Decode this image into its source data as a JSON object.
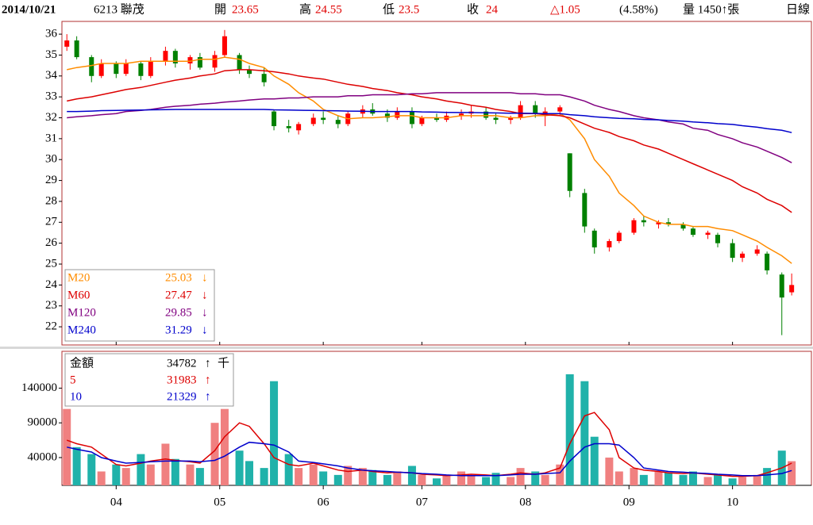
{
  "header": {
    "date": "2014/10/21",
    "stock": "6213 聯茂",
    "open_label": "開",
    "open": "23.65",
    "high_label": "高",
    "high": "24.55",
    "low_label": "低",
    "low": "23.5",
    "close_label": "收",
    "close": "24",
    "change": "△1.05",
    "change_pct": "(4.58%)",
    "volume": "量 1450↑張",
    "period": "日線"
  },
  "chart_data": [
    {
      "type": "candlestick",
      "xlim": [
        -1,
        151
      ],
      "ylim": [
        21.13,
        36.61
      ],
      "yticks": [
        22,
        23,
        24,
        25,
        26,
        27,
        28,
        29,
        30,
        31,
        32,
        33,
        34,
        35,
        36
      ],
      "up_color": "#ff0000",
      "down_color": "#008000",
      "x": [
        0,
        2,
        5,
        7,
        10,
        12,
        15,
        17,
        20,
        22,
        25,
        27,
        30,
        32,
        35,
        37,
        40,
        42,
        45,
        47,
        50,
        52,
        55,
        57,
        60,
        62,
        65,
        67,
        70,
        72,
        75,
        77,
        80,
        82,
        85,
        87,
        90,
        92,
        95,
        97,
        100,
        102,
        105,
        107,
        110,
        112,
        115,
        117,
        120,
        122,
        125,
        127,
        130,
        132,
        135,
        137,
        140,
        142,
        145,
        147
      ],
      "open": [
        35.4,
        35.7,
        34.9,
        34.0,
        34.6,
        34.1,
        34.6,
        34.0,
        34.7,
        35.2,
        34.6,
        34.9,
        34.4,
        35.0,
        35.0,
        34.3,
        34.1,
        32.3,
        31.6,
        31.4,
        31.7,
        32.0,
        31.9,
        31.7,
        32.2,
        32.4,
        32.2,
        32.0,
        32.3,
        31.7,
        32.0,
        31.9,
        32.1,
        32.2,
        32.3,
        32.0,
        31.9,
        32.0,
        32.6,
        32.2,
        32.3,
        30.3,
        28.4,
        26.6,
        25.8,
        26.1,
        26.5,
        27.1,
        26.9,
        27.0,
        26.9,
        26.7,
        26.4,
        26.4,
        26.0,
        25.3,
        25.5,
        25.5,
        24.5,
        23.65
      ],
      "high": [
        36.0,
        35.9,
        35.0,
        34.8,
        34.7,
        34.8,
        34.7,
        34.9,
        35.4,
        35.3,
        35.0,
        35.1,
        35.2,
        36.2,
        35.1,
        34.5,
        34.4,
        32.4,
        31.9,
        31.8,
        32.2,
        32.3,
        32.1,
        32.3,
        32.6,
        32.7,
        32.4,
        32.5,
        32.5,
        32.1,
        32.2,
        32.3,
        32.4,
        32.6,
        32.5,
        32.2,
        32.1,
        32.8,
        32.8,
        32.5,
        32.6,
        30.3,
        28.6,
        26.7,
        26.2,
        26.6,
        27.2,
        27.3,
        27.1,
        27.2,
        27.0,
        26.8,
        26.6,
        26.5,
        26.2,
        25.6,
        25.9,
        25.6,
        24.6,
        24.55
      ],
      "low": [
        35.2,
        34.8,
        33.7,
        33.9,
        33.9,
        34.0,
        33.8,
        33.9,
        34.5,
        34.4,
        34.3,
        34.3,
        34.2,
        34.9,
        34.1,
        33.9,
        33.5,
        31.4,
        31.3,
        31.2,
        31.6,
        31.7,
        31.5,
        31.6,
        32.0,
        32.1,
        31.8,
        31.9,
        31.5,
        31.6,
        31.8,
        31.8,
        31.9,
        32.0,
        31.9,
        31.7,
        31.7,
        31.9,
        32.0,
        31.6,
        32.1,
        28.2,
        26.5,
        25.5,
        25.6,
        26.0,
        26.4,
        26.8,
        26.7,
        26.8,
        26.6,
        26.3,
        26.2,
        25.8,
        25.1,
        25.1,
        25.4,
        24.5,
        21.6,
        23.5
      ],
      "close": [
        35.7,
        34.9,
        34.0,
        34.6,
        34.1,
        34.6,
        34.0,
        34.7,
        35.2,
        34.6,
        34.9,
        34.4,
        35.0,
        35.9,
        34.3,
        34.1,
        33.7,
        31.6,
        31.5,
        31.7,
        32.0,
        31.9,
        31.7,
        32.2,
        32.4,
        32.2,
        32.0,
        32.3,
        31.7,
        32.0,
        31.9,
        32.1,
        32.2,
        32.3,
        32.0,
        31.9,
        32.0,
        32.6,
        32.2,
        32.3,
        32.5,
        28.5,
        26.8,
        25.8,
        26.1,
        26.5,
        27.1,
        27.0,
        27.0,
        26.9,
        26.7,
        26.4,
        26.5,
        26.0,
        25.3,
        25.5,
        25.7,
        24.7,
        23.4,
        24.0
      ],
      "series": [
        {
          "name": "M20",
          "color": "#ff8c00",
          "trend": "↓",
          "values": [
            34.3,
            34.4,
            34.5,
            34.6,
            34.6,
            34.6,
            34.7,
            34.7,
            34.7,
            34.7,
            34.7,
            34.8,
            34.8,
            34.9,
            34.8,
            34.6,
            34.4,
            34.0,
            33.6,
            33.2,
            32.8,
            32.4,
            32.1,
            31.95,
            32.0,
            32.0,
            32.05,
            32.1,
            32.1,
            32.0,
            32.0,
            32.0,
            32.1,
            32.1,
            32.1,
            32.1,
            32.0,
            32.0,
            32.1,
            32.1,
            32.2,
            31.9,
            31.0,
            30.0,
            29.2,
            28.4,
            27.8,
            27.3,
            27.0,
            26.9,
            26.9,
            26.8,
            26.8,
            26.7,
            26.6,
            26.4,
            26.1,
            25.8,
            25.4,
            25.03
          ]
        },
        {
          "name": "M60",
          "color": "#dd0000",
          "trend": "↓",
          "values": [
            32.8,
            32.9,
            33.0,
            33.1,
            33.25,
            33.35,
            33.45,
            33.55,
            33.7,
            33.8,
            33.9,
            34.0,
            34.1,
            34.25,
            34.3,
            34.3,
            34.25,
            34.2,
            34.1,
            34.0,
            33.9,
            33.85,
            33.7,
            33.6,
            33.5,
            33.4,
            33.3,
            33.2,
            33.1,
            33.0,
            32.9,
            32.8,
            32.7,
            32.6,
            32.5,
            32.4,
            32.3,
            32.2,
            32.2,
            32.15,
            32.1,
            32.0,
            31.7,
            31.5,
            31.3,
            31.1,
            30.9,
            30.7,
            30.5,
            30.3,
            30.0,
            29.8,
            29.5,
            29.3,
            29.0,
            28.7,
            28.4,
            28.1,
            27.8,
            27.47
          ]
        },
        {
          "name": "M120",
          "color": "#800080",
          "trend": "↓",
          "values": [
            32.0,
            32.05,
            32.1,
            32.15,
            32.2,
            32.3,
            32.35,
            32.4,
            32.5,
            32.55,
            32.6,
            32.65,
            32.7,
            32.75,
            32.8,
            32.85,
            32.9,
            32.9,
            32.95,
            32.95,
            33.0,
            33.0,
            33.0,
            33.05,
            33.05,
            33.1,
            33.1,
            33.1,
            33.15,
            33.15,
            33.2,
            33.2,
            33.2,
            33.2,
            33.2,
            33.2,
            33.2,
            33.15,
            33.15,
            33.1,
            33.1,
            33.0,
            32.8,
            32.6,
            32.4,
            32.3,
            32.1,
            32.0,
            31.9,
            31.8,
            31.7,
            31.5,
            31.4,
            31.2,
            31.0,
            30.8,
            30.6,
            30.4,
            30.1,
            29.85
          ]
        },
        {
          "name": "M240",
          "color": "#0000cc",
          "trend": "↓",
          "values": [
            32.3,
            32.3,
            32.32,
            32.34,
            32.35,
            32.36,
            32.37,
            32.38,
            32.39,
            32.4,
            32.4,
            32.4,
            32.4,
            32.4,
            32.4,
            32.4,
            32.4,
            32.38,
            32.37,
            32.36,
            32.35,
            32.34,
            32.33,
            32.32,
            32.31,
            32.3,
            32.3,
            32.3,
            32.3,
            32.28,
            32.27,
            32.26,
            32.25,
            32.25,
            32.24,
            32.23,
            32.22,
            32.22,
            32.21,
            32.2,
            32.2,
            32.15,
            32.1,
            32.05,
            32.0,
            31.97,
            31.95,
            31.92,
            31.9,
            31.87,
            31.84,
            31.8,
            31.76,
            31.72,
            31.68,
            31.62,
            31.55,
            31.48,
            31.4,
            31.29
          ]
        }
      ]
    },
    {
      "type": "bar",
      "xlim": [
        -1,
        151
      ],
      "ylim": [
        0,
        193000
      ],
      "yticks": [
        40000,
        90000,
        140000
      ],
      "xticks": [
        {
          "value": 10,
          "label": "04"
        },
        {
          "value": 31,
          "label": "05"
        },
        {
          "value": 52,
          "label": "06"
        },
        {
          "value": 72,
          "label": "07"
        },
        {
          "value": 93,
          "label": "08"
        },
        {
          "value": 114,
          "label": "09"
        },
        {
          "value": 135,
          "label": "10"
        }
      ],
      "legend_label": "金額",
      "trend": "↑",
      "unit": "千",
      "up_color": "#f08080",
      "down_color": "#20b2aa",
      "values": [
        110000,
        55000,
        45000,
        20000,
        30000,
        25000,
        45000,
        30000,
        60000,
        38000,
        30000,
        25000,
        90000,
        110000,
        50000,
        35000,
        25000,
        150000,
        45000,
        25000,
        30000,
        20000,
        15000,
        28000,
        25000,
        22000,
        15000,
        20000,
        28000,
        15000,
        10000,
        15000,
        20000,
        15000,
        12000,
        18000,
        12000,
        25000,
        20000,
        15000,
        30000,
        160000,
        150000,
        70000,
        40000,
        20000,
        25000,
        15000,
        20000,
        18000,
        15000,
        20000,
        12000,
        15000,
        10000,
        12000,
        15000,
        25000,
        50000,
        34782
      ],
      "series": [
        {
          "name": "5",
          "color": "#dd0000",
          "trend": "↑",
          "values": [
            65000,
            60000,
            55000,
            45000,
            30000,
            28000,
            32000,
            35000,
            38000,
            36000,
            34000,
            32000,
            50000,
            70000,
            90000,
            85000,
            60000,
            40000,
            30000,
            28000,
            32000,
            28000,
            22000,
            20000,
            22000,
            20000,
            18000,
            19000,
            18000,
            16000,
            15000,
            14000,
            15000,
            16000,
            15000,
            14000,
            16000,
            18000,
            16000,
            18000,
            25000,
            60000,
            100000,
            105000,
            80000,
            40000,
            25000,
            22000,
            20000,
            18000,
            17000,
            18000,
            16000,
            15000,
            13000,
            13000,
            14000,
            18000,
            25000,
            31983
          ]
        },
        {
          "name": "10",
          "color": "#0000cc",
          "trend": "↑",
          "values": [
            55000,
            52000,
            48000,
            40000,
            35000,
            32000,
            33000,
            34000,
            35000,
            35000,
            35000,
            34000,
            36000,
            42000,
            55000,
            62000,
            60000,
            58000,
            48000,
            35000,
            33000,
            31000,
            28000,
            25000,
            22000,
            21000,
            20000,
            19000,
            18000,
            17000,
            16000,
            15000,
            14000,
            14000,
            14000,
            14000,
            15000,
            16000,
            16000,
            17000,
            18000,
            35000,
            55000,
            60000,
            60000,
            58000,
            40000,
            25000,
            22000,
            20000,
            19000,
            18000,
            17000,
            16000,
            15000,
            14000,
            14000,
            15000,
            17000,
            21329
          ]
        }
      ]
    }
  ]
}
